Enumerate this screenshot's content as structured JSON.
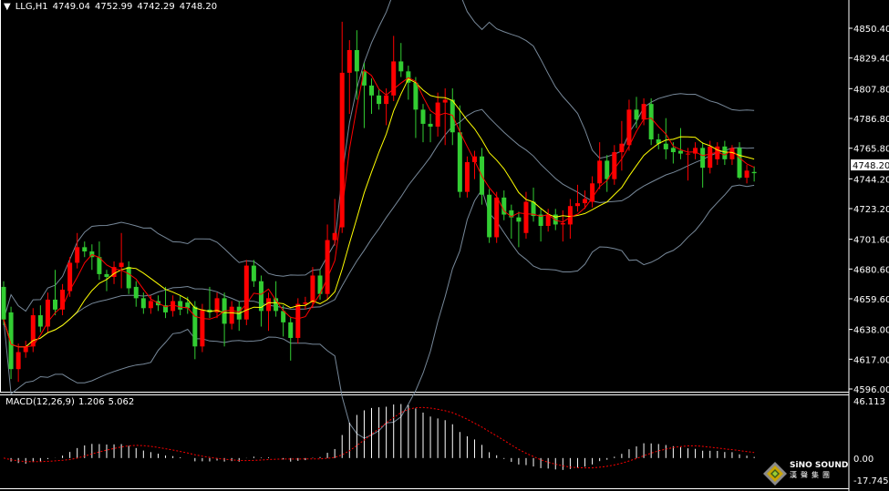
{
  "header": {
    "symbol": "LLG,H1",
    "open": "4749.04",
    "high": "4752.99",
    "low": "4742.29",
    "close": "4748.20"
  },
  "macd_header": {
    "label": "MACD(12,26,9)",
    "main": "1.206",
    "signal": "5.062"
  },
  "logo": {
    "text": "SiNO SOUND",
    "cn": "漢聲集團"
  },
  "colors": {
    "background": "#000000",
    "up_candle": "#ff0000",
    "down_candle": "#32cd32",
    "fast_ma": "#ff0000",
    "slow_ma": "#ffff00",
    "bands": "#778899",
    "macd_hist": "#ffffff",
    "macd_signal": "#ff0000"
  },
  "chart_data": {
    "type": "candlestick",
    "symbol": "LLG",
    "timeframe": "H1",
    "ylim": [
      4596.0,
      4850.4
    ],
    "y_ticks": [
      "4850.40",
      "4829.40",
      "4807.80",
      "4786.80",
      "4765.80",
      "4744.20",
      "4723.20",
      "4701.60",
      "4680.60",
      "4659.60",
      "4638.00",
      "4617.00",
      "4596.00"
    ],
    "current_price": "4748.20",
    "indicators": [
      "moving average (red)",
      "moving average (yellow)",
      "bollinger bands (gray)"
    ],
    "candles_ohlc": [
      [
        4668,
        4672,
        4641,
        4645
      ],
      [
        4650,
        4654,
        4603,
        4610
      ],
      [
        4610,
        4628,
        4601,
        4622
      ],
      [
        4622,
        4630,
        4618,
        4626
      ],
      [
        4626,
        4653,
        4622,
        4648
      ],
      [
        4648,
        4655,
        4636,
        4640
      ],
      [
        4640,
        4664,
        4636,
        4659
      ],
      [
        4659,
        4680,
        4648,
        4652
      ],
      [
        4652,
        4670,
        4648,
        4666
      ],
      [
        4665,
        4689,
        4661,
        4685
      ],
      [
        4685,
        4706,
        4681,
        4696
      ],
      [
        4696,
        4700,
        4689,
        4693
      ],
      [
        4693,
        4698,
        4680,
        4689
      ],
      [
        4689,
        4700,
        4673,
        4677
      ],
      [
        4677,
        4680,
        4665,
        4675
      ],
      [
        4675,
        4686,
        4670,
        4682
      ],
      [
        4682,
        4706,
        4667,
        4685
      ],
      [
        4682,
        4686,
        4663,
        4667
      ],
      [
        4668,
        4672,
        4654,
        4660
      ],
      [
        4660,
        4664,
        4649,
        4653
      ],
      [
        4653,
        4662,
        4649,
        4658
      ],
      [
        4658,
        4662,
        4651,
        4655
      ],
      [
        4655,
        4668,
        4646,
        4650
      ],
      [
        4651,
        4662,
        4647,
        4658
      ],
      [
        4658,
        4662,
        4648,
        4652
      ],
      [
        4657,
        4661,
        4649,
        4653
      ],
      [
        4654,
        4658,
        4617,
        4626
      ],
      [
        4626,
        4656,
        4622,
        4652
      ],
      [
        4652,
        4668,
        4646,
        4650
      ],
      [
        4650,
        4664,
        4646,
        4660
      ],
      [
        4660,
        4664,
        4626,
        4642
      ],
      [
        4642,
        4658,
        4638,
        4654
      ],
      [
        4654,
        4658,
        4637,
        4645
      ],
      [
        4645,
        4687,
        4641,
        4683
      ],
      [
        4683,
        4687,
        4668,
        4672
      ],
      [
        4672,
        4676,
        4640,
        4651
      ],
      [
        4651,
        4664,
        4637,
        4660
      ],
      [
        4660,
        4672,
        4647,
        4651
      ],
      [
        4651,
        4655,
        4633,
        4643
      ],
      [
        4643,
        4647,
        4616,
        4632
      ],
      [
        4632,
        4660,
        4628,
        4656
      ],
      [
        4656,
        4661,
        4652,
        4657
      ],
      [
        4657,
        4682,
        4653,
        4676
      ],
      [
        4676,
        4680,
        4659,
        4663
      ],
      [
        4663,
        4712,
        4659,
        4701
      ],
      [
        4701,
        4730,
        4697,
        4706
      ],
      [
        4710,
        4855,
        4706,
        4819
      ],
      [
        4819,
        4842,
        4790,
        4835
      ],
      [
        4835,
        4849,
        4800,
        4820
      ],
      [
        4820,
        4826,
        4780,
        4810
      ],
      [
        4810,
        4815,
        4790,
        4803
      ],
      [
        4803,
        4807,
        4793,
        4797
      ],
      [
        4797,
        4808,
        4782,
        4803
      ],
      [
        4803,
        4845,
        4799,
        4827
      ],
      [
        4827,
        4840,
        4816,
        4820
      ],
      [
        4820,
        4824,
        4800,
        4812
      ],
      [
        4812,
        4816,
        4773,
        4793
      ],
      [
        4793,
        4797,
        4770,
        4783
      ],
      [
        4783,
        4790,
        4770,
        4781
      ],
      [
        4781,
        4805,
        4774,
        4798
      ],
      [
        4798,
        4808,
        4768,
        4800
      ],
      [
        4800,
        4808,
        4768,
        4777
      ],
      [
        4777,
        4796,
        4731,
        4735
      ],
      [
        4735,
        4760,
        4731,
        4756
      ],
      [
        4756,
        4764,
        4744,
        4760
      ],
      [
        4760,
        4766,
        4726,
        4733
      ],
      [
        4733,
        4737,
        4699,
        4703
      ],
      [
        4703,
        4735,
        4699,
        4731
      ],
      [
        4731,
        4736,
        4715,
        4719
      ],
      [
        4722,
        4726,
        4702,
        4717
      ],
      [
        4717,
        4721,
        4696,
        4714
      ],
      [
        4706,
        4735,
        4702,
        4728
      ],
      [
        4728,
        4738,
        4714,
        4718
      ],
      [
        4719,
        4723,
        4700,
        4711
      ],
      [
        4711,
        4723,
        4707,
        4719
      ],
      [
        4719,
        4723,
        4708,
        4712
      ],
      [
        4712,
        4722,
        4700,
        4713
      ],
      [
        4712,
        4730,
        4702,
        4725
      ],
      [
        4725,
        4740,
        4721,
        4727
      ],
      [
        4727,
        4736,
        4723,
        4730
      ],
      [
        4728,
        4746,
        4724,
        4741
      ],
      [
        4741,
        4770,
        4737,
        4757
      ],
      [
        4757,
        4761,
        4735,
        4744
      ],
      [
        4744,
        4768,
        4740,
        4763
      ],
      [
        4763,
        4785,
        4750,
        4769
      ],
      [
        4768,
        4800,
        4764,
        4793
      ],
      [
        4793,
        4802,
        4780,
        4786
      ],
      [
        4786,
        4801,
        4782,
        4797
      ],
      [
        4797,
        4801,
        4768,
        4772
      ],
      [
        4772,
        4776,
        4765,
        4769
      ],
      [
        4769,
        4787,
        4758,
        4765
      ],
      [
        4766,
        4770,
        4755,
        4763
      ],
      [
        4764,
        4780,
        4758,
        4762
      ],
      [
        4762,
        4766,
        4743,
        4762
      ],
      [
        4762,
        4770,
        4758,
        4766
      ],
      [
        4766,
        4770,
        4738,
        4752
      ],
      [
        4752,
        4771,
        4748,
        4767
      ],
      [
        4758,
        4770,
        4754,
        4767
      ],
      [
        4767,
        4771,
        4754,
        4758
      ],
      [
        4758,
        4768,
        4754,
        4766
      ],
      [
        4766,
        4770,
        4744,
        4745
      ],
      [
        4745,
        4754,
        4741,
        4750
      ],
      [
        4749.04,
        4752.99,
        4742.29,
        4748.2
      ]
    ],
    "macd": {
      "params": "12,26,9",
      "ylim": [
        -17.745,
        46.113
      ],
      "y_ticks": [
        "46.113",
        "0.00",
        "-17.745"
      ],
      "last_main": 1.206,
      "last_signal": 5.062
    }
  }
}
